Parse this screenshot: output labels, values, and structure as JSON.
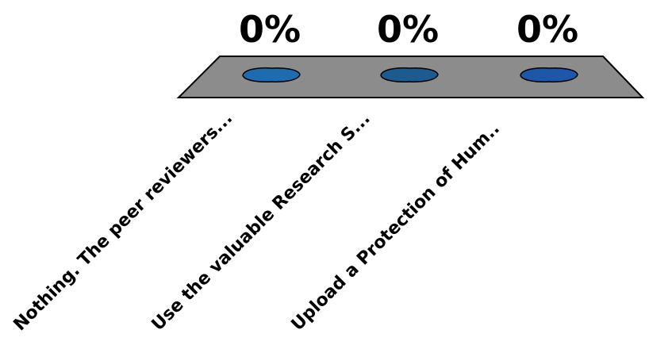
{
  "chart_data": {
    "type": "bar",
    "categories": [
      "Nothing. The peer reviewers...",
      "Use the valuable Research S...",
      "Upload a Protection of Hum.."
    ],
    "values": [
      0,
      0,
      0
    ],
    "value_labels": [
      "0%",
      "0%",
      "0%"
    ],
    "ylim": [
      0,
      100
    ],
    "colors": {
      "platform": "#8c8c8c",
      "bars": [
        "#1f6bb0",
        "#1d5a8e",
        "#1e56a8"
      ]
    }
  }
}
